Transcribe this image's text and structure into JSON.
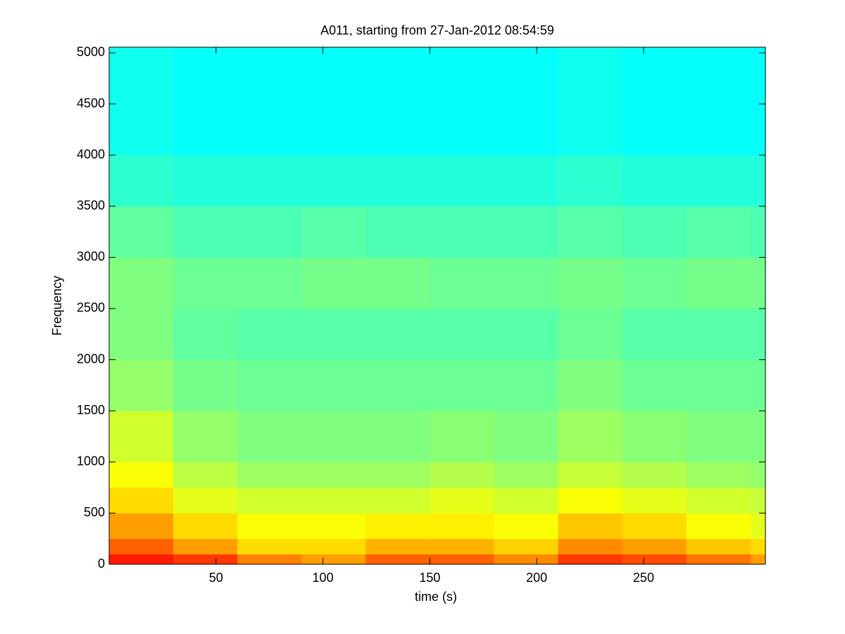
{
  "chart_data": {
    "type": "heatmap",
    "title": "A011, starting from 27-Jan-2012 08:54:59",
    "x_label": "time (s)",
    "y_label": "Frequency",
    "colormap": "jet",
    "clim": [
      0,
      1
    ],
    "x_edges": [
      0,
      30,
      60,
      90,
      120,
      150,
      180,
      210,
      240,
      270,
      300,
      307
    ],
    "y_edges": [
      0,
      100,
      250,
      500,
      750,
      1000,
      1500,
      2000,
      2500,
      3000,
      3500,
      4000,
      5055
    ],
    "z": [
      [
        0.85,
        0.82,
        0.75,
        0.72,
        0.78,
        0.78,
        0.74,
        0.82,
        0.8,
        0.76,
        0.72
      ],
      [
        0.78,
        0.72,
        0.66,
        0.66,
        0.7,
        0.7,
        0.67,
        0.74,
        0.72,
        0.68,
        0.66
      ],
      [
        0.72,
        0.66,
        0.62,
        0.62,
        0.64,
        0.64,
        0.62,
        0.68,
        0.66,
        0.62,
        0.6
      ],
      [
        0.66,
        0.6,
        0.58,
        0.58,
        0.58,
        0.6,
        0.58,
        0.62,
        0.6,
        0.58,
        0.57
      ],
      [
        0.62,
        0.56,
        0.53,
        0.53,
        0.53,
        0.55,
        0.53,
        0.57,
        0.55,
        0.53,
        0.52
      ],
      [
        0.58,
        0.52,
        0.5,
        0.5,
        0.5,
        0.51,
        0.5,
        0.53,
        0.51,
        0.5,
        0.5
      ],
      [
        0.52,
        0.49,
        0.48,
        0.48,
        0.48,
        0.48,
        0.48,
        0.5,
        0.48,
        0.48,
        0.48
      ],
      [
        0.5,
        0.47,
        0.46,
        0.46,
        0.46,
        0.46,
        0.46,
        0.48,
        0.46,
        0.46,
        0.46
      ],
      [
        0.5,
        0.48,
        0.48,
        0.49,
        0.49,
        0.48,
        0.48,
        0.49,
        0.48,
        0.49,
        0.49
      ],
      [
        0.47,
        0.45,
        0.45,
        0.46,
        0.45,
        0.45,
        0.45,
        0.46,
        0.45,
        0.46,
        0.45
      ],
      [
        0.42,
        0.41,
        0.41,
        0.41,
        0.41,
        0.41,
        0.41,
        0.42,
        0.41,
        0.41,
        0.41
      ],
      [
        0.39,
        0.38,
        0.38,
        0.38,
        0.38,
        0.38,
        0.38,
        0.39,
        0.38,
        0.38,
        0.38
      ]
    ],
    "xlim": [
      0,
      307
    ],
    "ylim": [
      0,
      5055
    ],
    "xticks": [
      50,
      100,
      150,
      200,
      250
    ],
    "yticks": [
      0,
      500,
      1000,
      1500,
      2000,
      2500,
      3000,
      3500,
      4000,
      4500,
      5000
    ]
  }
}
